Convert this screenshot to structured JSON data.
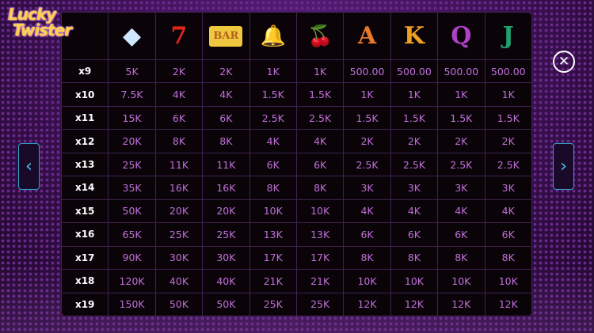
{
  "logo": {
    "line1": "Lucky",
    "line2": "Twister"
  },
  "symbols": [
    {
      "name": "diamond",
      "glyph": "◆",
      "color": "#cfe8ff"
    },
    {
      "name": "seven",
      "glyph": "7",
      "color": "#e0231b"
    },
    {
      "name": "bar",
      "glyph": "BAR",
      "color": "#b5601a"
    },
    {
      "name": "bell",
      "glyph": "🔔",
      "color": "#e6d27a"
    },
    {
      "name": "cherries",
      "glyph": "🍒",
      "color": "#d0201a"
    },
    {
      "name": "A",
      "glyph": "A",
      "color": "#e8782a"
    },
    {
      "name": "K",
      "glyph": "K",
      "color": "#f0a020"
    },
    {
      "name": "Q",
      "glyph": "Q",
      "color": "#b040c8"
    },
    {
      "name": "J",
      "glyph": "J",
      "color": "#20a070"
    }
  ],
  "rows": [
    {
      "label": "x9",
      "values": [
        "5K",
        "2K",
        "2K",
        "1K",
        "1K",
        "500.00",
        "500.00",
        "500.00",
        "500.00"
      ]
    },
    {
      "label": "x10",
      "values": [
        "7.5K",
        "4K",
        "4K",
        "1.5K",
        "1.5K",
        "1K",
        "1K",
        "1K",
        "1K"
      ]
    },
    {
      "label": "x11",
      "values": [
        "15K",
        "6K",
        "6K",
        "2.5K",
        "2.5K",
        "1.5K",
        "1.5K",
        "1.5K",
        "1.5K"
      ]
    },
    {
      "label": "x12",
      "values": [
        "20K",
        "8K",
        "8K",
        "4K",
        "4K",
        "2K",
        "2K",
        "2K",
        "2K"
      ]
    },
    {
      "label": "x13",
      "values": [
        "25K",
        "11K",
        "11K",
        "6K",
        "6K",
        "2.5K",
        "2.5K",
        "2.5K",
        "2.5K"
      ]
    },
    {
      "label": "x14",
      "values": [
        "35K",
        "16K",
        "16K",
        "8K",
        "8K",
        "3K",
        "3K",
        "3K",
        "3K"
      ]
    },
    {
      "label": "x15",
      "values": [
        "50K",
        "20K",
        "20K",
        "10K",
        "10K",
        "4K",
        "4K",
        "4K",
        "4K"
      ]
    },
    {
      "label": "x16",
      "values": [
        "65K",
        "25K",
        "25K",
        "13K",
        "13K",
        "6K",
        "6K",
        "6K",
        "6K"
      ]
    },
    {
      "label": "x17",
      "values": [
        "90K",
        "30K",
        "30K",
        "17K",
        "17K",
        "8K",
        "8K",
        "8K",
        "8K"
      ]
    },
    {
      "label": "x18",
      "values": [
        "120K",
        "40K",
        "40K",
        "21K",
        "21K",
        "10K",
        "10K",
        "10K",
        "10K"
      ]
    },
    {
      "label": "x19",
      "values": [
        "150K",
        "50K",
        "50K",
        "25K",
        "25K",
        "12K",
        "12K",
        "12K",
        "12K"
      ]
    }
  ],
  "nav": {
    "prev": "‹",
    "next": "›",
    "close": "✕"
  }
}
